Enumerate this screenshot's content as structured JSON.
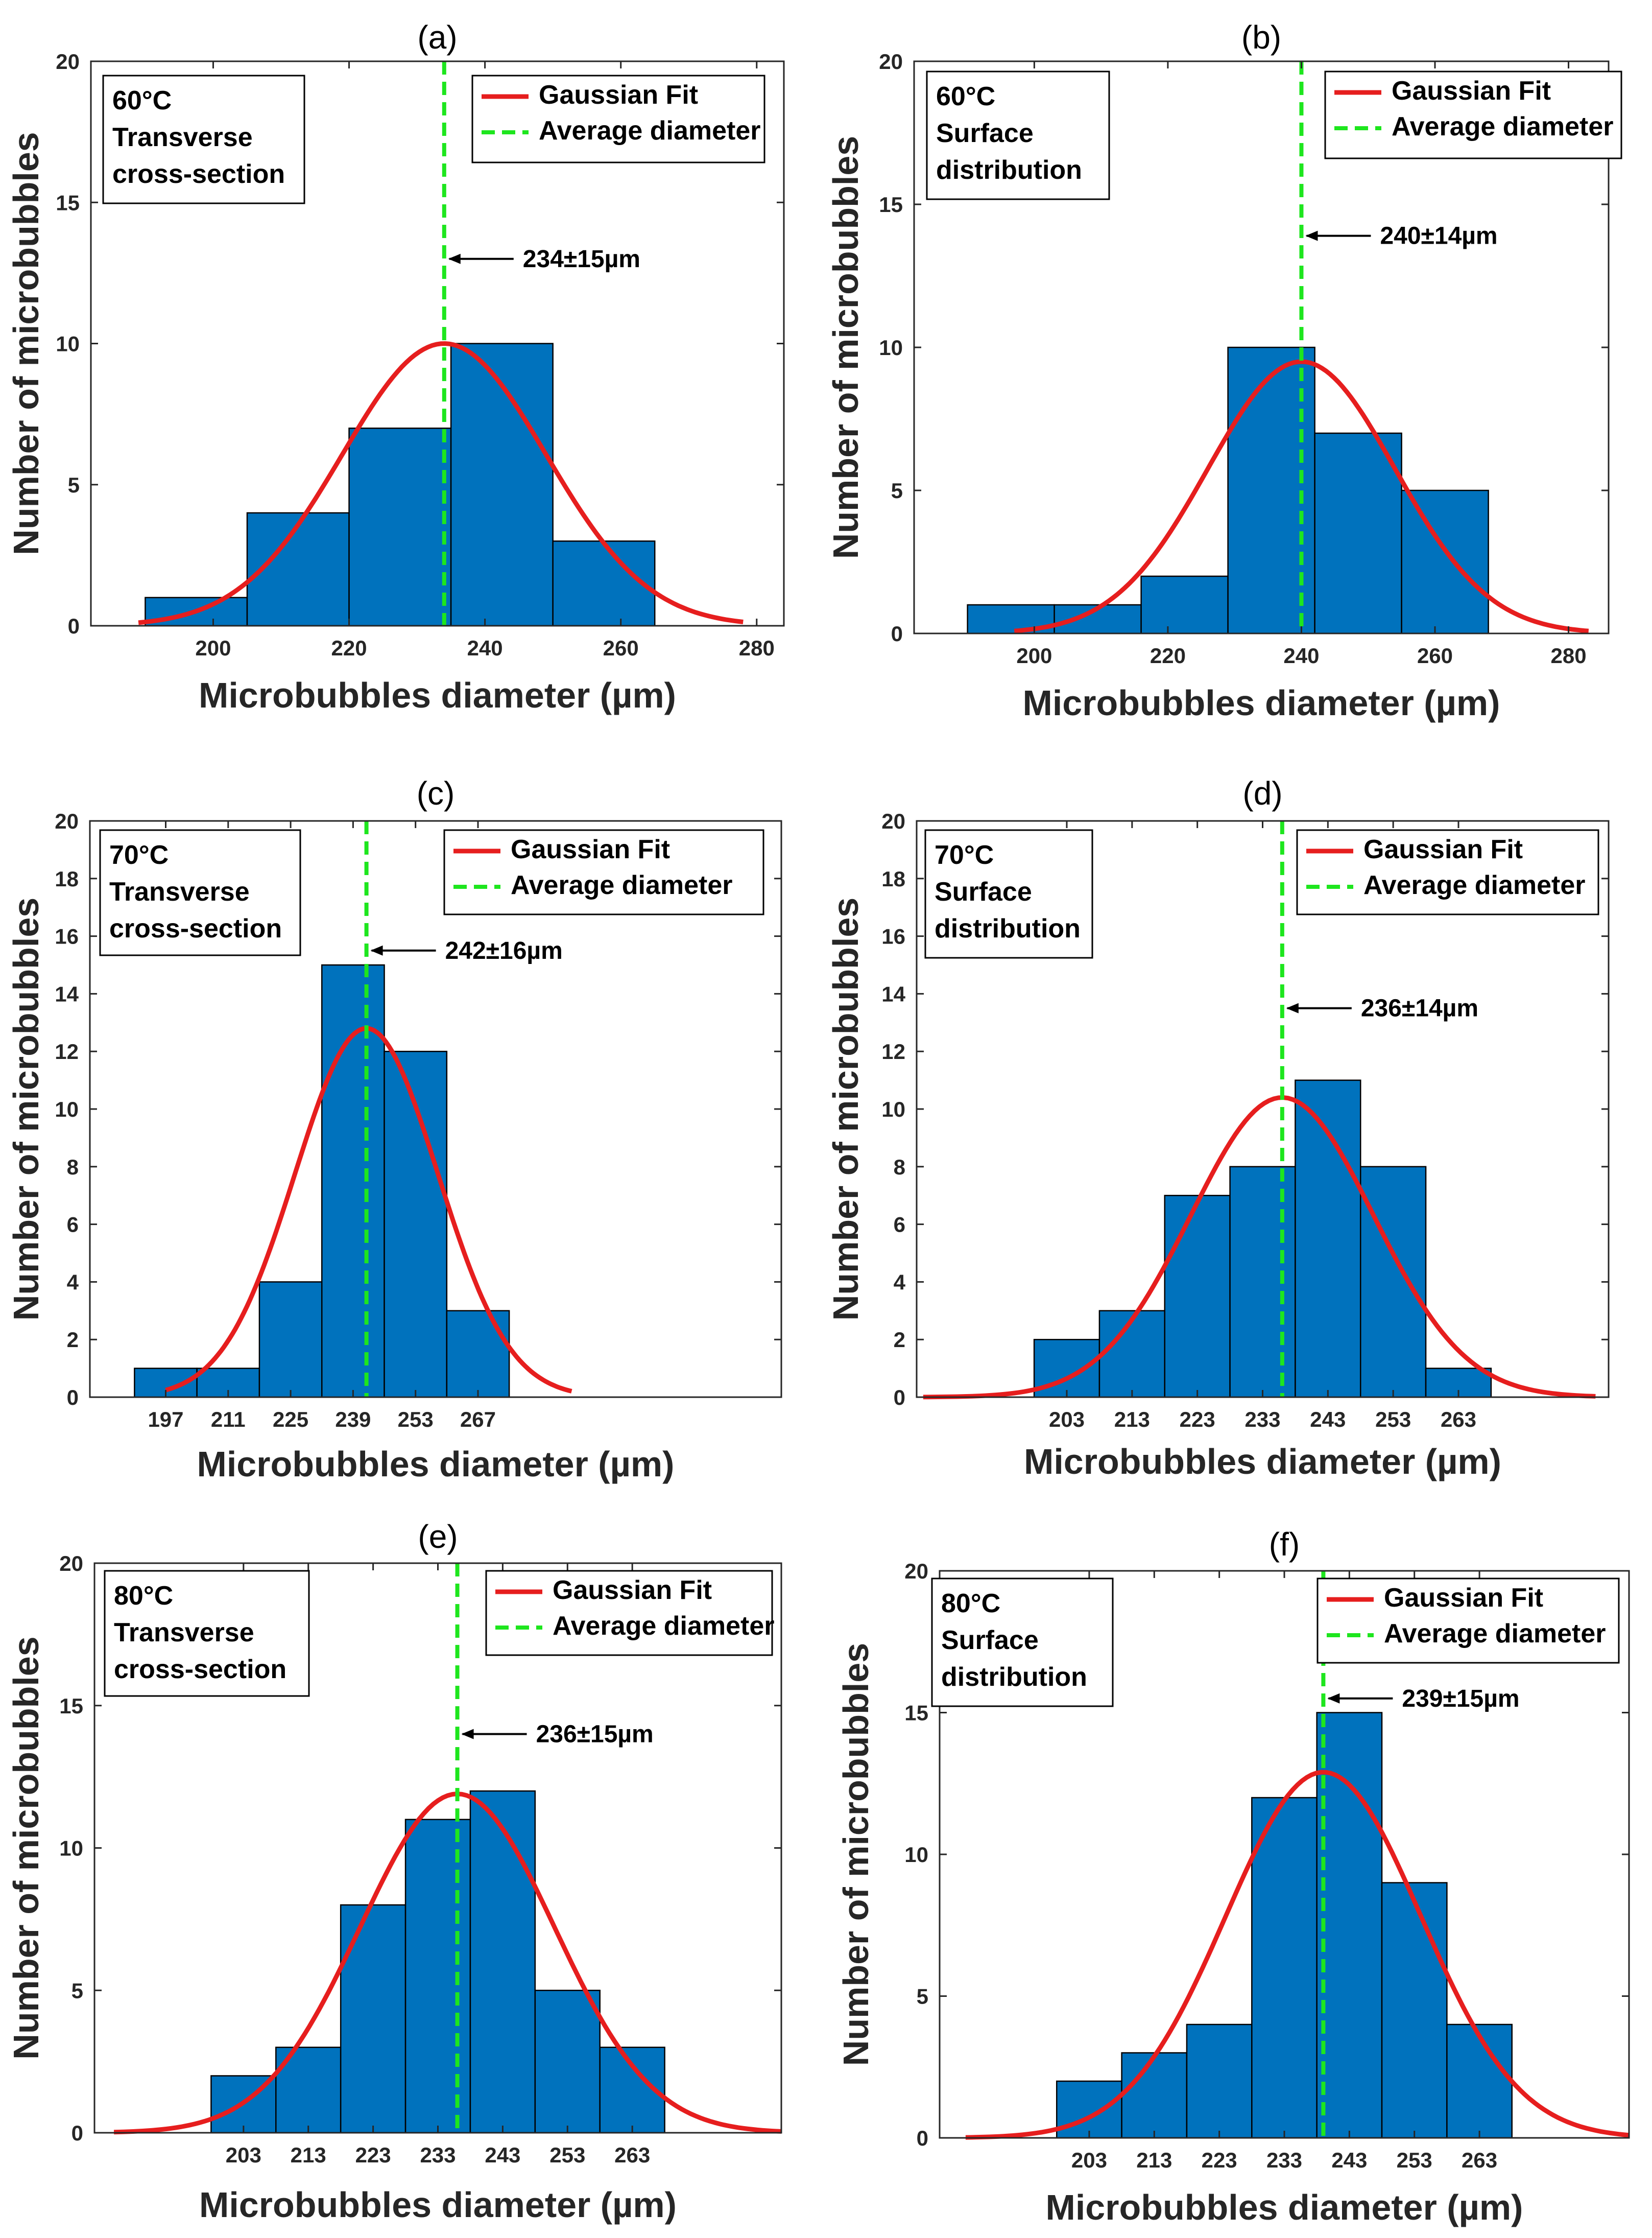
{
  "colors": {
    "bar": "#0072BD",
    "fit": "#E61E1E",
    "average": "#1EE61E",
    "axis": "#262626"
  },
  "legend": {
    "fit_label": "Gaussian Fit",
    "avg_label": "Average diameter"
  },
  "chart_data": [
    {
      "id": "a",
      "type": "bar",
      "title": "(a)",
      "info": [
        "60°C",
        "Transverse",
        "cross-section"
      ],
      "xlabel": "Microbubbles diameter (µm)",
      "ylabel": "Number of microbubbles",
      "xlim": [
        182,
        284
      ],
      "ylim": [
        0,
        20
      ],
      "xticks": [
        200,
        220,
        240,
        260,
        280
      ],
      "yticks": [
        0,
        5,
        10,
        15,
        20
      ],
      "bins": [
        [
          190,
          205,
          1
        ],
        [
          205,
          220,
          4
        ],
        [
          220,
          235,
          7
        ],
        [
          235,
          250,
          10
        ],
        [
          250,
          265,
          3
        ]
      ],
      "fit": {
        "mean": 234,
        "sigma": 15,
        "peak": 10.0,
        "range": [
          189,
          278
        ]
      },
      "average": 234,
      "annotation": "234±15µm",
      "annotation_y": 13
    },
    {
      "id": "b",
      "type": "bar",
      "title": "(b)",
      "info": [
        "60°C",
        "Surface",
        "distribution"
      ],
      "xlabel": "Microbubbles diameter (µm)",
      "ylabel": "Number of microbubbles",
      "xlim": [
        182,
        286
      ],
      "ylim": [
        0,
        20
      ],
      "xticks": [
        200,
        220,
        240,
        260,
        280
      ],
      "yticks": [
        0,
        5,
        10,
        15,
        20
      ],
      "bins": [
        [
          190,
          203,
          1
        ],
        [
          203,
          216,
          1
        ],
        [
          216,
          229,
          2
        ],
        [
          229,
          242,
          10
        ],
        [
          242,
          255,
          7
        ],
        [
          255,
          268,
          5
        ]
      ],
      "fit": {
        "mean": 240,
        "sigma": 14,
        "peak": 9.5,
        "range": [
          197,
          283
        ]
      },
      "average": 240,
      "annotation": "240±14µm",
      "annotation_y": 13.9
    },
    {
      "id": "c",
      "type": "bar",
      "title": "(c)",
      "info": [
        "70°C",
        "Transverse",
        "cross-section"
      ],
      "xlabel": "Microbubbles diameter (µm)",
      "ylabel": "Number of microbubbles",
      "xlim": [
        180,
        335
      ],
      "ylim": [
        0,
        20
      ],
      "xticks": [
        197,
        211,
        225,
        239,
        253,
        267
      ],
      "yticks": [
        0,
        2,
        4,
        6,
        8,
        10,
        12,
        14,
        16,
        18,
        20
      ],
      "bins": [
        [
          190,
          204,
          1
        ],
        [
          204,
          218,
          1
        ],
        [
          218,
          232,
          4
        ],
        [
          232,
          246,
          15
        ],
        [
          246,
          260,
          12
        ],
        [
          260,
          274,
          3
        ]
      ],
      "fit": {
        "mean": 242,
        "sigma": 16,
        "peak": 12.8,
        "range": [
          197,
          288
        ]
      },
      "average": 242,
      "annotation": "242±16µm",
      "annotation_y": 15.5
    },
    {
      "id": "d",
      "type": "bar",
      "title": "(d)",
      "info": [
        "70°C",
        "Surface",
        "distribution"
      ],
      "xlabel": "Microbubbles diameter (µm)",
      "ylabel": "Number of microbubbles",
      "xlim": [
        180,
        286
      ],
      "ylim": [
        0,
        20
      ],
      "xticks": [
        203,
        213,
        223,
        233,
        243,
        253,
        263
      ],
      "yticks": [
        0,
        2,
        4,
        6,
        8,
        10,
        12,
        14,
        16,
        18,
        20
      ],
      "bins": [
        [
          198,
          208,
          2
        ],
        [
          208,
          218,
          3
        ],
        [
          218,
          228,
          7
        ],
        [
          228,
          238,
          8
        ],
        [
          238,
          248,
          11
        ],
        [
          248,
          258,
          8
        ],
        [
          258,
          268,
          1
        ]
      ],
      "fit": {
        "mean": 236,
        "sigma": 14,
        "peak": 10.4,
        "range": [
          181,
          284
        ]
      },
      "average": 236,
      "annotation": "236±14µm",
      "annotation_y": 13.5
    },
    {
      "id": "e",
      "type": "bar",
      "title": "(e)",
      "info": [
        "80°C",
        "Transverse",
        "cross-section"
      ],
      "xlabel": "Microbubbles diameter (µm)",
      "ylabel": "Number of microbubbles",
      "xlim": [
        180,
        286
      ],
      "ylim": [
        0,
        20
      ],
      "xticks": [
        203,
        213,
        223,
        233,
        243,
        253,
        263
      ],
      "yticks": [
        0,
        5,
        10,
        15,
        20
      ],
      "bins": [
        [
          198,
          208,
          2
        ],
        [
          208,
          218,
          3
        ],
        [
          218,
          228,
          8
        ],
        [
          228,
          238,
          11
        ],
        [
          238,
          248,
          12
        ],
        [
          248,
          258,
          5
        ],
        [
          258,
          268,
          3
        ]
      ],
      "fit": {
        "mean": 236,
        "sigma": 15,
        "peak": 11.9,
        "range": [
          183,
          286
        ]
      },
      "average": 236,
      "annotation": "236±15µm",
      "annotation_y": 14
    },
    {
      "id": "f",
      "type": "bar",
      "title": "(f)",
      "info": [
        "80°C",
        "Surface",
        "distribution"
      ],
      "xlabel": "Microbubbles diameter (µm)",
      "ylabel": "Number of microbubbles",
      "xlim": [
        180,
        286
      ],
      "ylim": [
        0,
        20
      ],
      "xticks": [
        203,
        213,
        223,
        233,
        243,
        253,
        263
      ],
      "yticks": [
        0,
        5,
        10,
        15,
        20
      ],
      "bins": [
        [
          198,
          208,
          2
        ],
        [
          208,
          218,
          3
        ],
        [
          218,
          228,
          4
        ],
        [
          228,
          238,
          12
        ],
        [
          238,
          248,
          15
        ],
        [
          248,
          258,
          9
        ],
        [
          258,
          268,
          4
        ]
      ],
      "fit": {
        "mean": 239,
        "sigma": 15,
        "peak": 12.9,
        "range": [
          184,
          286
        ]
      },
      "average": 239,
      "annotation": "239±15µm",
      "annotation_y": 15.5
    }
  ]
}
